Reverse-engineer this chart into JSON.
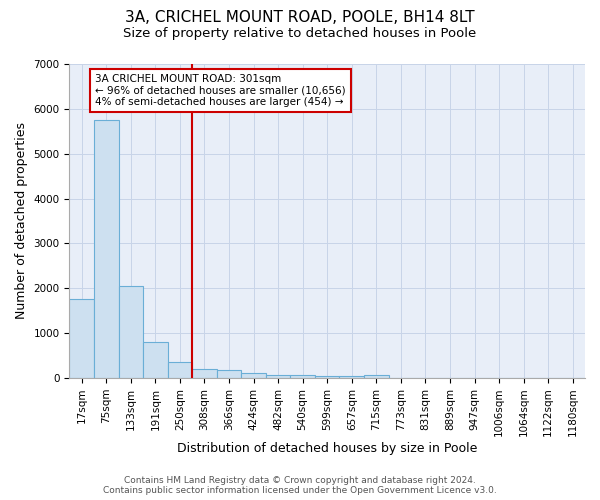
{
  "title1": "3A, CRICHEL MOUNT ROAD, POOLE, BH14 8LT",
  "title2": "Size of property relative to detached houses in Poole",
  "xlabel": "Distribution of detached houses by size in Poole",
  "ylabel": "Number of detached properties",
  "bin_labels": [
    "17sqm",
    "75sqm",
    "133sqm",
    "191sqm",
    "250sqm",
    "308sqm",
    "366sqm",
    "424sqm",
    "482sqm",
    "540sqm",
    "599sqm",
    "657sqm",
    "715sqm",
    "773sqm",
    "831sqm",
    "889sqm",
    "947sqm",
    "1006sqm",
    "1064sqm",
    "1122sqm",
    "1180sqm"
  ],
  "bar_heights": [
    1750,
    5750,
    2050,
    800,
    350,
    200,
    175,
    100,
    75,
    75,
    50,
    50,
    75,
    0,
    0,
    0,
    0,
    0,
    0,
    0,
    0
  ],
  "bar_color": "#cde0f0",
  "bar_edge_color": "#6aaed6",
  "red_line_index": 5,
  "property_label": "3A CRICHEL MOUNT ROAD: 301sqm",
  "annotation_line1": "← 96% of detached houses are smaller (10,656)",
  "annotation_line2": "4% of semi-detached houses are larger (454) →",
  "annotation_box_color": "#cc0000",
  "red_line_color": "#cc0000",
  "ylim": [
    0,
    7000
  ],
  "yticks": [
    0,
    1000,
    2000,
    3000,
    4000,
    5000,
    6000,
    7000
  ],
  "footer1": "Contains HM Land Registry data © Crown copyright and database right 2024.",
  "footer2": "Contains public sector information licensed under the Open Government Licence v3.0.",
  "bg_color": "#ffffff",
  "plot_bg_color": "#e8eef8",
  "grid_color": "#c8d4e8",
  "title1_fontsize": 11,
  "title2_fontsize": 9.5,
  "axis_fontsize": 7.5,
  "label_fontsize": 9,
  "annotation_fontsize": 7.5,
  "footer_fontsize": 6.5
}
